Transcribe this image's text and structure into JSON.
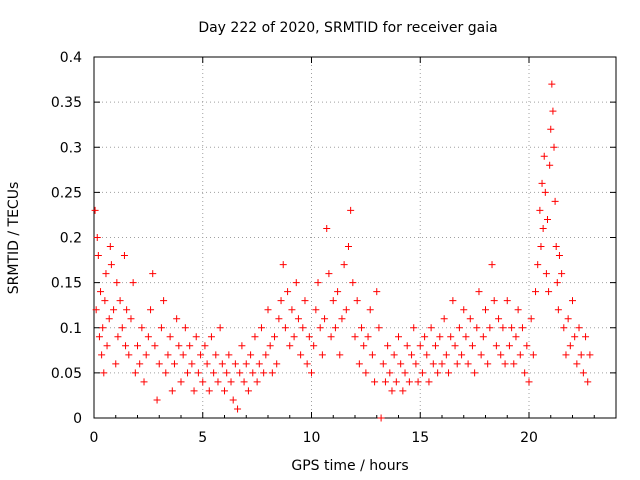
{
  "chart_data": {
    "type": "scatter",
    "title": "Day 222 of 2020, SRMTID for receiver gaia",
    "xlabel": "GPS time / hours",
    "ylabel": "SRMTID / TECUs",
    "xlim": [
      0,
      24
    ],
    "ylim": [
      0,
      0.4
    ],
    "xticks": [
      0,
      5,
      10,
      15,
      20
    ],
    "xtick_labels": [
      "0",
      "5",
      "10",
      "15",
      "20"
    ],
    "yticks": [
      0,
      0.05,
      0.1,
      0.15,
      0.2,
      0.25,
      0.3,
      0.35,
      0.4
    ],
    "ytick_labels": [
      "0",
      "0.05",
      "0.1",
      "0.15",
      "0.2",
      "0.25",
      "0.3",
      "0.35",
      "0.4"
    ],
    "grid": true,
    "marker": "plus",
    "color": "#ff0000",
    "series": [
      {
        "name": "SRMTID",
        "points": [
          [
            0.05,
            0.23
          ],
          [
            0.1,
            0.12
          ],
          [
            0.15,
            0.2
          ],
          [
            0.2,
            0.18
          ],
          [
            0.25,
            0.09
          ],
          [
            0.3,
            0.14
          ],
          [
            0.35,
            0.07
          ],
          [
            0.4,
            0.1
          ],
          [
            0.45,
            0.05
          ],
          [
            0.5,
            0.13
          ],
          [
            0.55,
            0.16
          ],
          [
            0.6,
            0.08
          ],
          [
            0.7,
            0.11
          ],
          [
            0.75,
            0.19
          ],
          [
            0.8,
            0.17
          ],
          [
            0.9,
            0.12
          ],
          [
            1.0,
            0.06
          ],
          [
            1.05,
            0.15
          ],
          [
            1.1,
            0.09
          ],
          [
            1.2,
            0.13
          ],
          [
            1.3,
            0.1
          ],
          [
            1.4,
            0.18
          ],
          [
            1.45,
            0.08
          ],
          [
            1.5,
            0.12
          ],
          [
            1.6,
            0.07
          ],
          [
            1.7,
            0.11
          ],
          [
            1.8,
            0.15
          ],
          [
            1.9,
            0.05
          ],
          [
            2.0,
            0.08
          ],
          [
            2.1,
            0.06
          ],
          [
            2.2,
            0.1
          ],
          [
            2.3,
            0.04
          ],
          [
            2.4,
            0.07
          ],
          [
            2.5,
            0.09
          ],
          [
            2.6,
            0.12
          ],
          [
            2.7,
            0.16
          ],
          [
            2.8,
            0.08
          ],
          [
            2.9,
            0.02
          ],
          [
            3.0,
            0.06
          ],
          [
            3.1,
            0.1
          ],
          [
            3.2,
            0.13
          ],
          [
            3.3,
            0.05
          ],
          [
            3.4,
            0.07
          ],
          [
            3.5,
            0.09
          ],
          [
            3.6,
            0.03
          ],
          [
            3.7,
            0.06
          ],
          [
            3.8,
            0.11
          ],
          [
            3.9,
            0.08
          ],
          [
            4.0,
            0.04
          ],
          [
            4.1,
            0.07
          ],
          [
            4.2,
            0.1
          ],
          [
            4.3,
            0.05
          ],
          [
            4.4,
            0.08
          ],
          [
            4.5,
            0.06
          ],
          [
            4.6,
            0.03
          ],
          [
            4.7,
            0.09
          ],
          [
            4.8,
            0.05
          ],
          [
            4.9,
            0.07
          ],
          [
            5.0,
            0.04
          ],
          [
            5.1,
            0.08
          ],
          [
            5.2,
            0.06
          ],
          [
            5.3,
            0.03
          ],
          [
            5.4,
            0.09
          ],
          [
            5.5,
            0.05
          ],
          [
            5.6,
            0.07
          ],
          [
            5.7,
            0.04
          ],
          [
            5.8,
            0.1
          ],
          [
            5.9,
            0.06
          ],
          [
            6.0,
            0.03
          ],
          [
            6.1,
            0.05
          ],
          [
            6.2,
            0.07
          ],
          [
            6.3,
            0.04
          ],
          [
            6.4,
            0.02
          ],
          [
            6.5,
            0.06
          ],
          [
            6.6,
            0.01
          ],
          [
            6.7,
            0.05
          ],
          [
            6.8,
            0.08
          ],
          [
            6.9,
            0.04
          ],
          [
            7.0,
            0.06
          ],
          [
            7.1,
            0.03
          ],
          [
            7.2,
            0.07
          ],
          [
            7.3,
            0.05
          ],
          [
            7.4,
            0.09
          ],
          [
            7.5,
            0.04
          ],
          [
            7.6,
            0.06
          ],
          [
            7.7,
            0.1
          ],
          [
            7.8,
            0.05
          ],
          [
            7.9,
            0.07
          ],
          [
            8.0,
            0.12
          ],
          [
            8.1,
            0.08
          ],
          [
            8.2,
            0.05
          ],
          [
            8.3,
            0.09
          ],
          [
            8.4,
            0.06
          ],
          [
            8.5,
            0.11
          ],
          [
            8.6,
            0.13
          ],
          [
            8.7,
            0.17
          ],
          [
            8.8,
            0.1
          ],
          [
            8.9,
            0.14
          ],
          [
            9.0,
            0.08
          ],
          [
            9.1,
            0.12
          ],
          [
            9.2,
            0.09
          ],
          [
            9.3,
            0.15
          ],
          [
            9.4,
            0.11
          ],
          [
            9.5,
            0.07
          ],
          [
            9.6,
            0.1
          ],
          [
            9.7,
            0.13
          ],
          [
            9.8,
            0.06
          ],
          [
            9.9,
            0.09
          ],
          [
            10.0,
            0.05
          ],
          [
            10.1,
            0.08
          ],
          [
            10.2,
            0.12
          ],
          [
            10.3,
            0.15
          ],
          [
            10.4,
            0.1
          ],
          [
            10.5,
            0.07
          ],
          [
            10.6,
            0.11
          ],
          [
            10.7,
            0.21
          ],
          [
            10.8,
            0.16
          ],
          [
            10.9,
            0.09
          ],
          [
            11.0,
            0.13
          ],
          [
            11.1,
            0.1
          ],
          [
            11.2,
            0.14
          ],
          [
            11.3,
            0.07
          ],
          [
            11.4,
            0.11
          ],
          [
            11.5,
            0.17
          ],
          [
            11.6,
            0.12
          ],
          [
            11.7,
            0.19
          ],
          [
            11.8,
            0.23
          ],
          [
            11.9,
            0.15
          ],
          [
            12.0,
            0.09
          ],
          [
            12.1,
            0.13
          ],
          [
            12.2,
            0.06
          ],
          [
            12.3,
            0.1
          ],
          [
            12.4,
            0.08
          ],
          [
            12.5,
            0.05
          ],
          [
            12.6,
            0.09
          ],
          [
            12.7,
            0.12
          ],
          [
            12.8,
            0.07
          ],
          [
            12.9,
            0.04
          ],
          [
            13.0,
            0.14
          ],
          [
            13.1,
            0.1
          ],
          [
            13.2,
            0.0
          ],
          [
            13.3,
            0.06
          ],
          [
            13.4,
            0.04
          ],
          [
            13.5,
            0.08
          ],
          [
            13.6,
            0.05
          ],
          [
            13.7,
            0.03
          ],
          [
            13.8,
            0.07
          ],
          [
            13.9,
            0.04
          ],
          [
            14.0,
            0.09
          ],
          [
            14.1,
            0.06
          ],
          [
            14.2,
            0.03
          ],
          [
            14.3,
            0.05
          ],
          [
            14.4,
            0.08
          ],
          [
            14.5,
            0.04
          ],
          [
            14.6,
            0.07
          ],
          [
            14.7,
            0.1
          ],
          [
            14.8,
            0.06
          ],
          [
            14.9,
            0.04
          ],
          [
            15.0,
            0.08
          ],
          [
            15.1,
            0.05
          ],
          [
            15.2,
            0.09
          ],
          [
            15.3,
            0.07
          ],
          [
            15.4,
            0.04
          ],
          [
            15.5,
            0.1
          ],
          [
            15.6,
            0.06
          ],
          [
            15.7,
            0.08
          ],
          [
            15.8,
            0.05
          ],
          [
            15.9,
            0.09
          ],
          [
            16.0,
            0.06
          ],
          [
            16.1,
            0.11
          ],
          [
            16.2,
            0.07
          ],
          [
            16.3,
            0.05
          ],
          [
            16.4,
            0.09
          ],
          [
            16.5,
            0.13
          ],
          [
            16.6,
            0.08
          ],
          [
            16.7,
            0.06
          ],
          [
            16.8,
            0.1
          ],
          [
            16.9,
            0.07
          ],
          [
            17.0,
            0.12
          ],
          [
            17.1,
            0.09
          ],
          [
            17.2,
            0.06
          ],
          [
            17.3,
            0.11
          ],
          [
            17.4,
            0.08
          ],
          [
            17.5,
            0.05
          ],
          [
            17.6,
            0.1
          ],
          [
            17.7,
            0.14
          ],
          [
            17.8,
            0.07
          ],
          [
            17.9,
            0.09
          ],
          [
            18.0,
            0.12
          ],
          [
            18.1,
            0.06
          ],
          [
            18.2,
            0.1
          ],
          [
            18.3,
            0.17
          ],
          [
            18.4,
            0.13
          ],
          [
            18.5,
            0.08
          ],
          [
            18.6,
            0.11
          ],
          [
            18.7,
            0.07
          ],
          [
            18.8,
            0.1
          ],
          [
            18.9,
            0.06
          ],
          [
            19.0,
            0.13
          ],
          [
            19.1,
            0.08
          ],
          [
            19.2,
            0.1
          ],
          [
            19.3,
            0.06
          ],
          [
            19.4,
            0.09
          ],
          [
            19.5,
            0.12
          ],
          [
            19.6,
            0.07
          ],
          [
            19.7,
            0.1
          ],
          [
            19.8,
            0.05
          ],
          [
            19.9,
            0.08
          ],
          [
            20.0,
            0.04
          ],
          [
            20.1,
            0.11
          ],
          [
            20.2,
            0.07
          ],
          [
            20.3,
            0.14
          ],
          [
            20.4,
            0.17
          ],
          [
            20.5,
            0.23
          ],
          [
            20.55,
            0.19
          ],
          [
            20.6,
            0.26
          ],
          [
            20.65,
            0.21
          ],
          [
            20.7,
            0.29
          ],
          [
            20.75,
            0.25
          ],
          [
            20.8,
            0.16
          ],
          [
            20.85,
            0.22
          ],
          [
            20.9,
            0.14
          ],
          [
            20.95,
            0.28
          ],
          [
            21.0,
            0.32
          ],
          [
            21.05,
            0.37
          ],
          [
            21.1,
            0.34
          ],
          [
            21.15,
            0.3
          ],
          [
            21.2,
            0.24
          ],
          [
            21.25,
            0.19
          ],
          [
            21.3,
            0.15
          ],
          [
            21.35,
            0.12
          ],
          [
            21.4,
            0.18
          ],
          [
            21.5,
            0.16
          ],
          [
            21.6,
            0.1
          ],
          [
            21.7,
            0.07
          ],
          [
            21.8,
            0.11
          ],
          [
            21.9,
            0.08
          ],
          [
            22.0,
            0.13
          ],
          [
            22.1,
            0.09
          ],
          [
            22.2,
            0.06
          ],
          [
            22.3,
            0.1
          ],
          [
            22.4,
            0.07
          ],
          [
            22.5,
            0.05
          ],
          [
            22.6,
            0.09
          ],
          [
            22.7,
            0.04
          ],
          [
            22.8,
            0.07
          ]
        ]
      }
    ]
  }
}
